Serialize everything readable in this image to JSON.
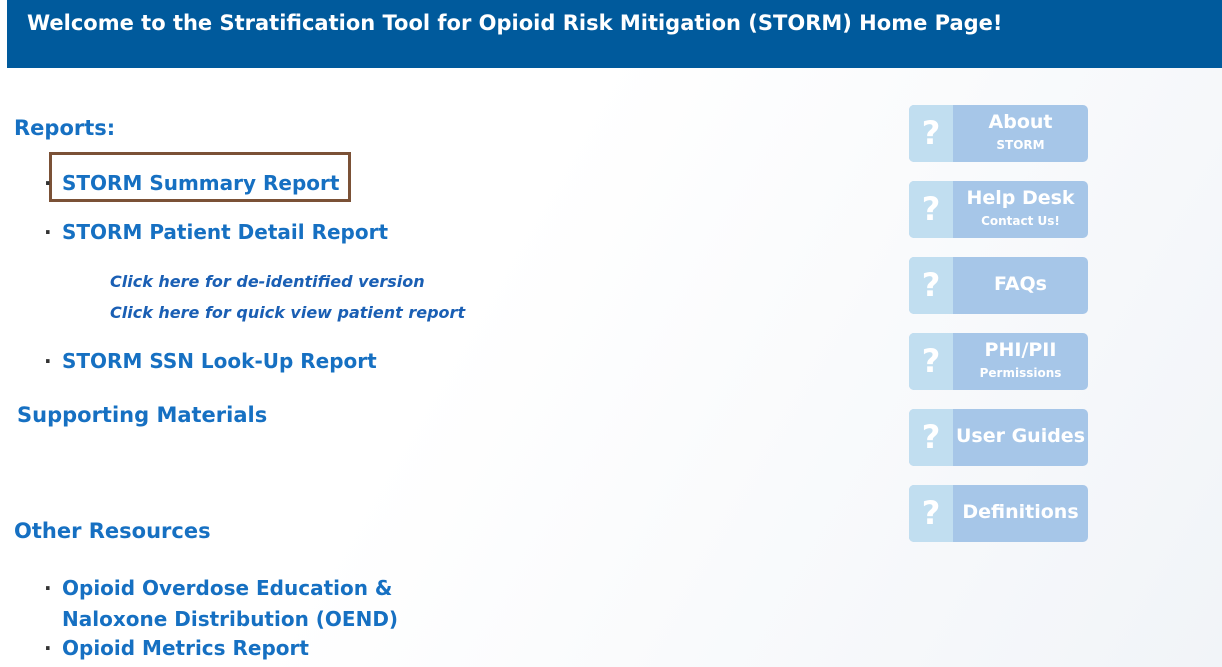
{
  "header": {
    "title": "Welcome to the Stratification Tool for Opioid Risk Mitigation (STORM) Home Page!"
  },
  "reports": {
    "heading": "Reports:",
    "items": [
      "STORM Summary Report",
      "STORM Patient Detail Report",
      "STORM SSN Look-Up Report"
    ],
    "sublinks": [
      "Click here for de-identified version",
      "Click here for quick view patient report"
    ]
  },
  "supporting": {
    "heading": "Supporting Materials"
  },
  "other": {
    "heading": "Other Resources",
    "items": [
      "Opioid Overdose Education & Naloxone Distribution (OEND)",
      "Opioid Metrics Report"
    ]
  },
  "buttons": [
    {
      "icon": "?",
      "title": "About",
      "sub": "STORM"
    },
    {
      "icon": "?",
      "title": "Help Desk",
      "sub": "Contact Us!"
    },
    {
      "icon": "?",
      "title": "FAQs"
    },
    {
      "icon": "?",
      "title": "PHI/PII",
      "sub": "Permissions"
    },
    {
      "icon": "?",
      "title": "User Guides"
    },
    {
      "icon": "?",
      "title": "Definitions"
    }
  ]
}
